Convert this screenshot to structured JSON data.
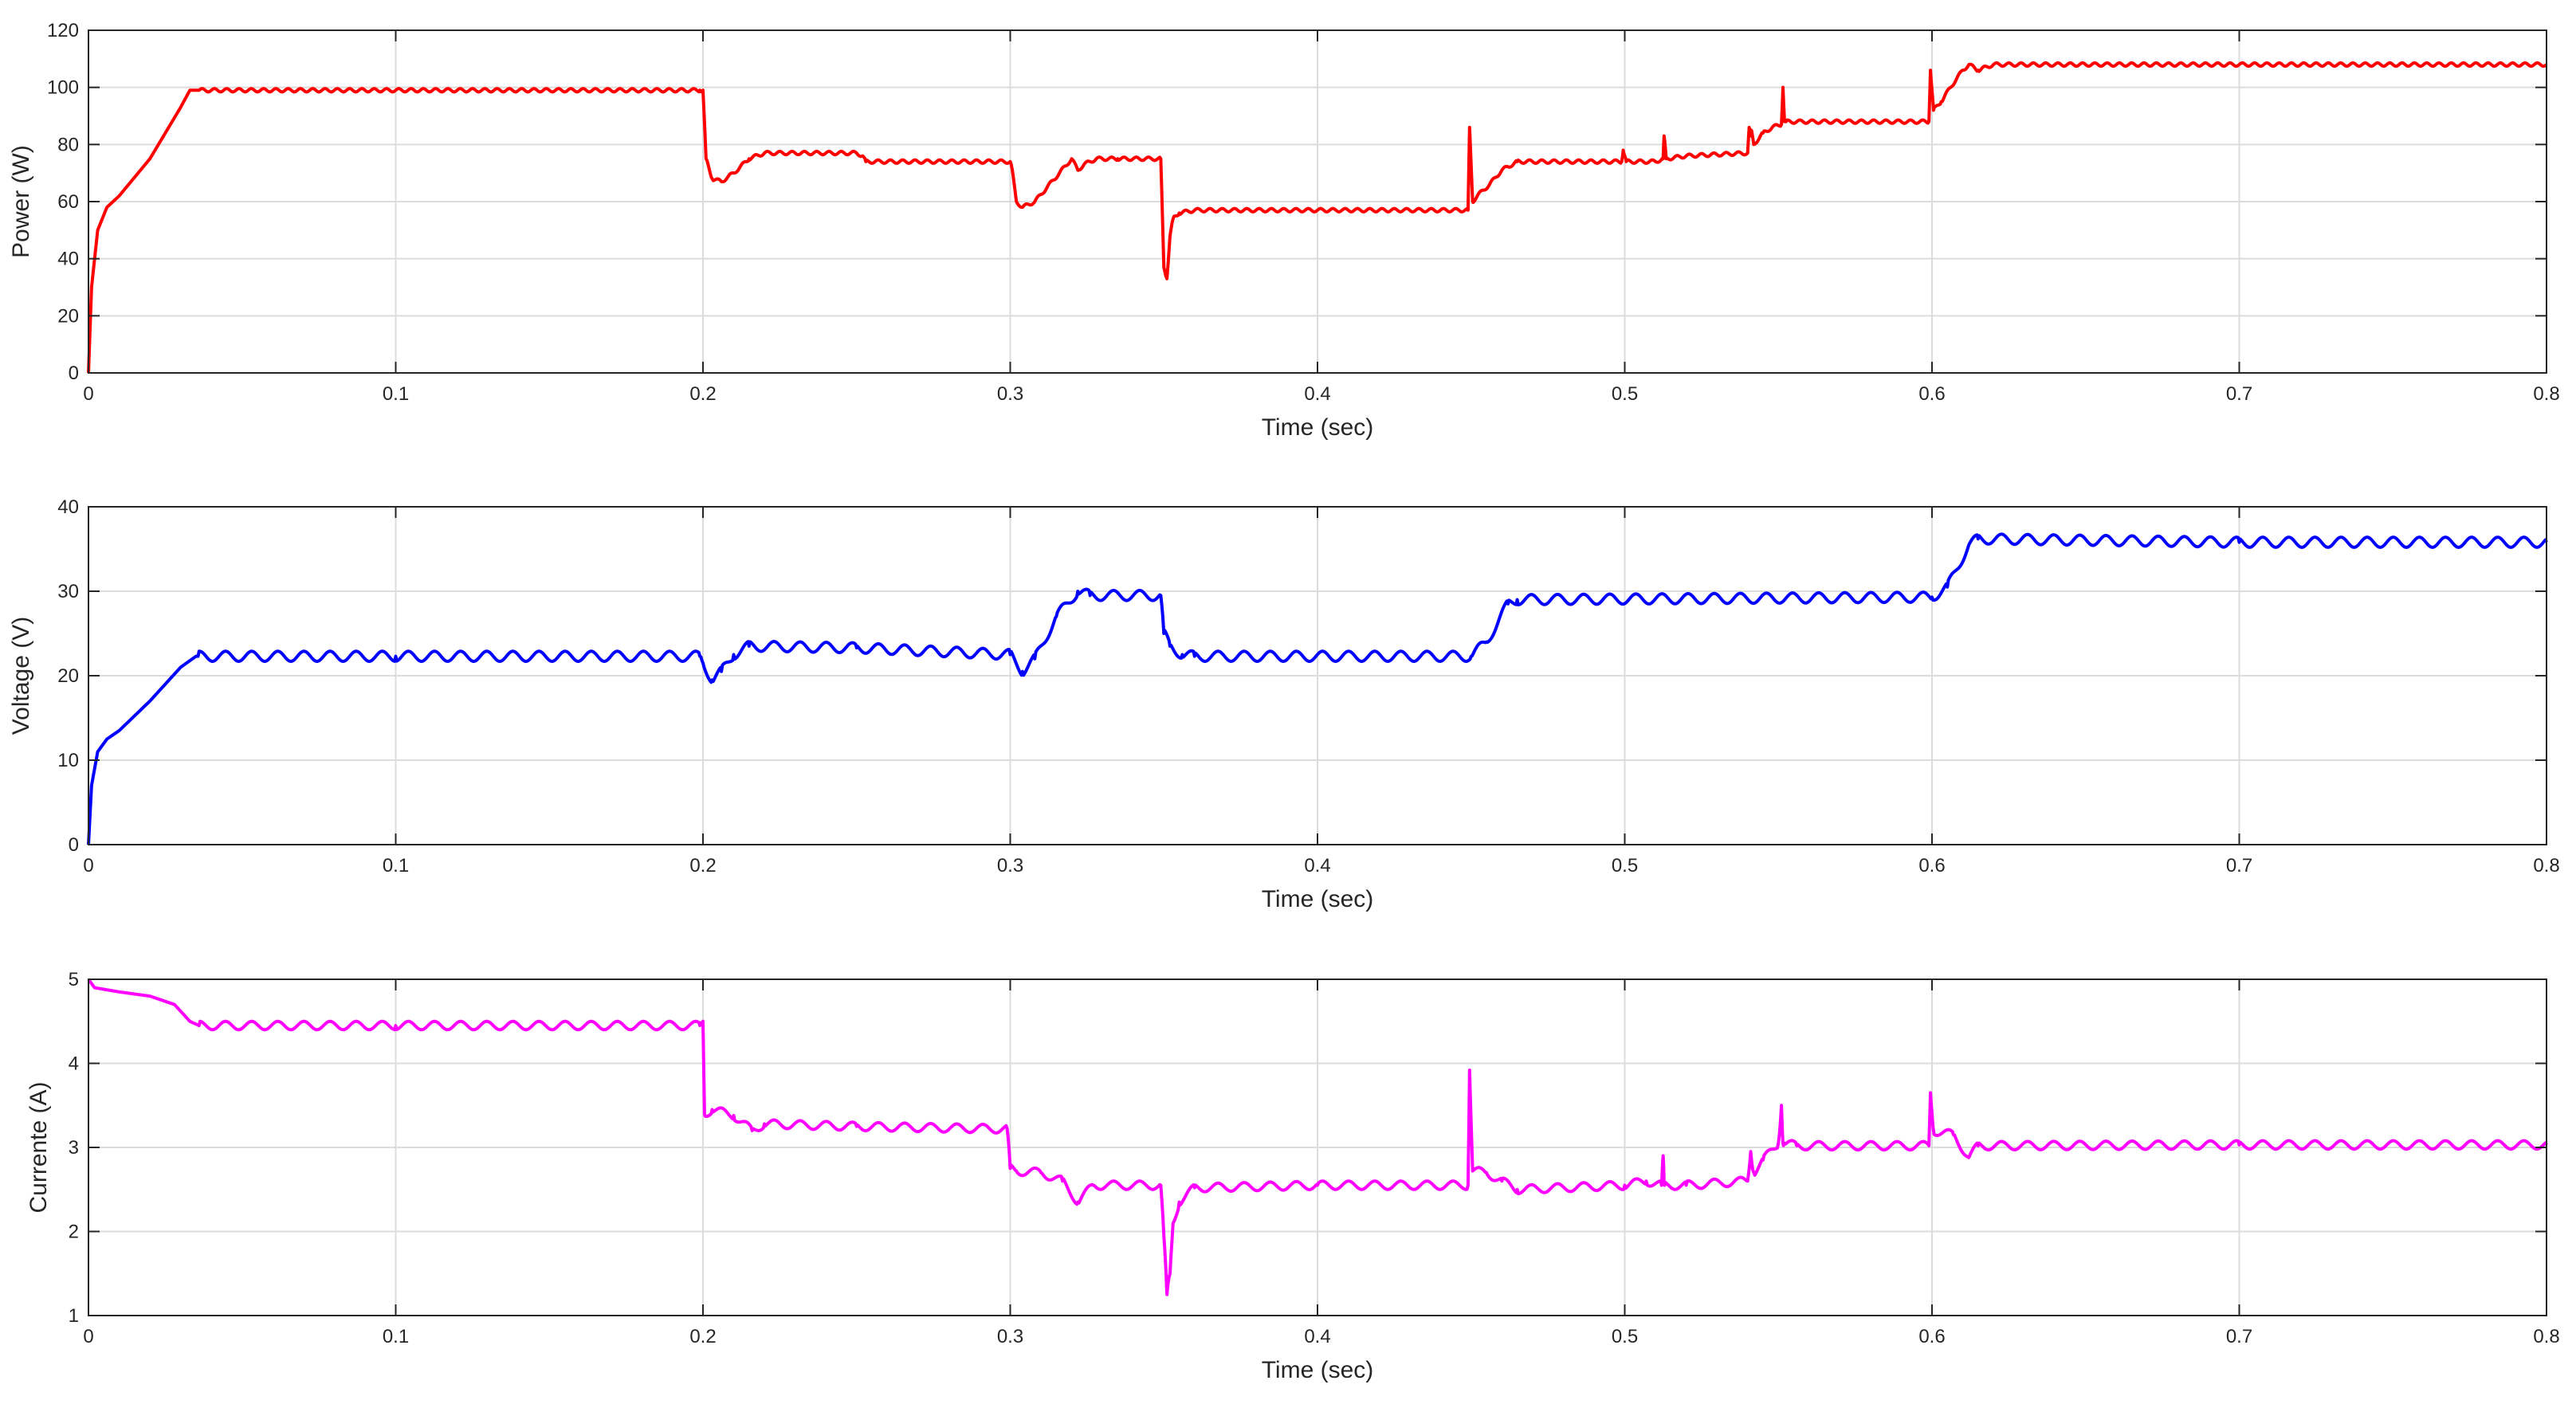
{
  "colors": {
    "background": "#ffffff",
    "axes_box": "#262626",
    "grid": "#dcdcdc",
    "text": "#262626"
  },
  "chart_data": [
    {
      "type": "line",
      "xlabel": "Time (sec)",
      "ylabel": "Power (W)",
      "xlim": [
        0,
        0.8
      ],
      "ylim": [
        0,
        120
      ],
      "xticks": [
        "0",
        "0.1",
        "0.2",
        "0.3",
        "0.4",
        "0.5",
        "0.6",
        "0.7",
        "0.8"
      ],
      "yticks": [
        "0",
        "20",
        "40",
        "60",
        "80",
        "100",
        "120"
      ],
      "grid": true,
      "series": [
        {
          "color": "#ff0000",
          "ripple_amplitude": 0.6,
          "ripple_period": 0.004,
          "x": [
            0,
            0.001,
            0.003,
            0.006,
            0.01,
            0.02,
            0.03,
            0.033,
            0.06,
            0.1,
            0.15,
            0.199,
            0.2,
            0.201,
            0.203,
            0.206,
            0.21,
            0.215,
            0.22,
            0.25,
            0.252,
            0.253,
            0.3,
            0.3005,
            0.302,
            0.304,
            0.308,
            0.312,
            0.316,
            0.32,
            0.322,
            0.324,
            0.328,
            0.335,
            0.349,
            0.35,
            0.351,
            0.352,
            0.353,
            0.355,
            0.36,
            0.38,
            0.4,
            0.449,
            0.4495,
            0.4505,
            0.452,
            0.456,
            0.46,
            0.465,
            0.47,
            0.49,
            0.499,
            0.4995,
            0.5005,
            0.51,
            0.5125,
            0.5128,
            0.5135,
            0.52,
            0.54,
            0.5405,
            0.541,
            0.5412,
            0.542,
            0.545,
            0.548,
            0.551,
            0.5515,
            0.552,
            0.5525,
            0.56,
            0.599,
            0.5995,
            0.6005,
            0.603,
            0.606,
            0.61,
            0.612,
            0.615,
            0.62,
            0.7,
            0.8
          ],
          "y": [
            0,
            30,
            50,
            58,
            62,
            75,
            93,
            99,
            99,
            99,
            99,
            99,
            99,
            75,
            68,
            67,
            70,
            75,
            77,
            77,
            76,
            74,
            74,
            72,
            60,
            58,
            60,
            65,
            70,
            75,
            71,
            73,
            75,
            75,
            75,
            37,
            33,
            48,
            54,
            56,
            57,
            57,
            57,
            57,
            86,
            60,
            62,
            66,
            71,
            74,
            74,
            74,
            74,
            78,
            74,
            74,
            75,
            83,
            75,
            76,
            77,
            86,
            83,
            85,
            80,
            84,
            86,
            87,
            100,
            88,
            88,
            88,
            88,
            106,
            92,
            95,
            100,
            106,
            108,
            106,
            108,
            108,
            108
          ]
        }
      ]
    },
    {
      "type": "line",
      "xlabel": "Time (sec)",
      "ylabel": "Voltage (V)",
      "xlim": [
        0,
        0.8
      ],
      "ylim": [
        0,
        40
      ],
      "xticks": [
        "0",
        "0.1",
        "0.2",
        "0.3",
        "0.4",
        "0.5",
        "0.6",
        "0.7",
        "0.8"
      ],
      "yticks": [
        "0",
        "10",
        "20",
        "30",
        "40"
      ],
      "grid": true,
      "series": [
        {
          "color": "#0000ff",
          "ripple_amplitude": 0.6,
          "ripple_period": 0.0085,
          "x": [
            0,
            0.001,
            0.003,
            0.006,
            0.01,
            0.02,
            0.03,
            0.035,
            0.1,
            0.199,
            0.2,
            0.203,
            0.206,
            0.21,
            0.215,
            0.25,
            0.3,
            0.304,
            0.308,
            0.315,
            0.322,
            0.326,
            0.349,
            0.35,
            0.352,
            0.356,
            0.36,
            0.45,
            0.455,
            0.462,
            0.465,
            0.6,
            0.605,
            0.612,
            0.615,
            0.7,
            0.8
          ],
          "y": [
            0,
            7,
            11,
            12.5,
            13.5,
            17,
            21,
            22.3,
            22.3,
            22.3,
            21.5,
            19.5,
            20.5,
            22.5,
            23.5,
            23.3,
            22.5,
            20.5,
            22,
            27,
            30,
            29.5,
            29.5,
            25,
            23.5,
            22.5,
            22.3,
            22.3,
            24,
            28.5,
            29,
            29.3,
            30.5,
            35.5,
            36.2,
            35.8,
            35.8
          ]
        }
      ]
    },
    {
      "type": "line",
      "xlabel": "Time (sec)",
      "ylabel": "Currente (A)",
      "xlim": [
        0,
        0.8
      ],
      "ylim": [
        1,
        5
      ],
      "xticks": [
        "0",
        "0.1",
        "0.2",
        "0.3",
        "0.4",
        "0.5",
        "0.6",
        "0.7",
        "0.8"
      ],
      "yticks": [
        "1",
        "2",
        "3",
        "4",
        "5"
      ],
      "grid": true,
      "series": [
        {
          "color": "#ff00ff",
          "ripple_amplitude": 0.05,
          "ripple_period": 0.0085,
          "x": [
            0,
            0.002,
            0.01,
            0.02,
            0.028,
            0.033,
            0.036,
            0.1,
            0.199,
            0.2,
            0.2005,
            0.203,
            0.21,
            0.216,
            0.22,
            0.25,
            0.299,
            0.3,
            0.302,
            0.31,
            0.317,
            0.322,
            0.327,
            0.349,
            0.35,
            0.351,
            0.352,
            0.353,
            0.355,
            0.36,
            0.4,
            0.449,
            0.4495,
            0.4505,
            0.455,
            0.46,
            0.465,
            0.5,
            0.507,
            0.512,
            0.5125,
            0.5128,
            0.513,
            0.52,
            0.54,
            0.541,
            0.542,
            0.545,
            0.55,
            0.551,
            0.5515,
            0.552,
            0.556,
            0.599,
            0.5995,
            0.6005,
            0.607,
            0.612,
            0.615,
            0.7,
            0.8
          ],
          "y": [
            5,
            4.9,
            4.85,
            4.8,
            4.7,
            4.5,
            4.45,
            4.45,
            4.45,
            4.5,
            3.4,
            3.45,
            3.38,
            3.2,
            3.28,
            3.25,
            3.22,
            2.75,
            2.72,
            2.7,
            2.6,
            2.35,
            2.55,
            2.55,
            1.95,
            1.25,
            1.5,
            2.1,
            2.35,
            2.52,
            2.55,
            2.55,
            3.92,
            2.72,
            2.7,
            2.6,
            2.5,
            2.55,
            2.6,
            2.55,
            2.9,
            2.6,
            2.55,
            2.55,
            2.6,
            2.95,
            2.7,
            2.85,
            3.05,
            3.5,
            3.05,
            3.05,
            3.02,
            3.02,
            3.65,
            3.2,
            3.15,
            2.88,
            3.02,
            3.03,
            3.03
          ]
        }
      ]
    }
  ]
}
